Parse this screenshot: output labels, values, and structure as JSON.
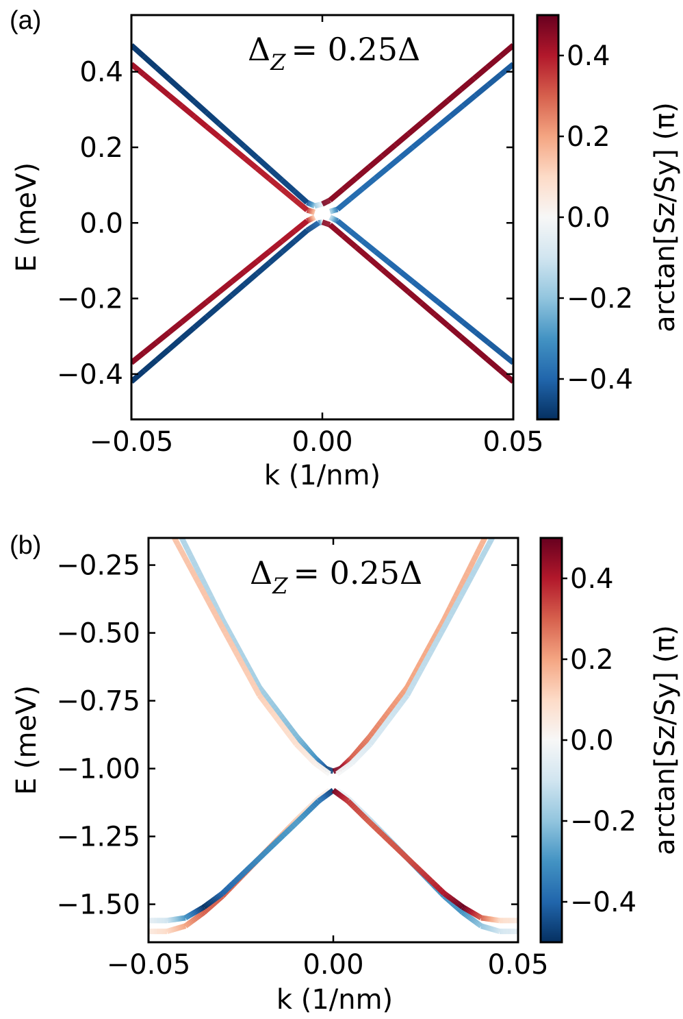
{
  "chart_data": [
    {
      "type": "line",
      "panel_label": "(a)",
      "annotation_text": "= 0.25",
      "annotation_math": {
        "base": "Δ",
        "subscript": "Z",
        "rhs": "= 0.25Δ"
      },
      "xlabel": "k (1/nm)",
      "ylabel": "E (meV)",
      "xlim": [
        -0.05,
        0.05
      ],
      "ylim": [
        -0.52,
        0.55
      ],
      "xticks": [
        {
          "v": -0.05,
          "label": "−0.05"
        },
        {
          "v": 0.0,
          "label": "0.00"
        },
        {
          "v": 0.05,
          "label": "0.05"
        }
      ],
      "yticks": [
        {
          "v": 0.4,
          "label": "0.4"
        },
        {
          "v": 0.2,
          "label": "0.2"
        },
        {
          "v": 0.0,
          "label": "0.0"
        },
        {
          "v": -0.2,
          "label": "−0.2"
        },
        {
          "v": -0.4,
          "label": "−0.4"
        }
      ],
      "colorbar": {
        "label": "arctan[S_z/S_y] (π)",
        "label_text": "arctan[Sz/Sy] (π)",
        "range": [
          -0.5,
          0.5
        ],
        "colormap": "RdBu_r",
        "ticks": [
          {
            "v": 0.4,
            "label": "0.4"
          },
          {
            "v": 0.2,
            "label": "0.2"
          },
          {
            "v": 0.0,
            "label": "0.0"
          },
          {
            "v": -0.2,
            "label": "−0.2"
          },
          {
            "v": -0.4,
            "label": "−0.4"
          }
        ]
      },
      "series": [
        {
          "name": "band-1",
          "x": [
            -0.05,
            -0.004,
            -0.002,
            0.0
          ],
          "y": [
            0.47,
            0.054,
            0.045,
            0.05
          ],
          "c": [
            -0.48,
            -0.45,
            -0.2,
            -0.05
          ]
        },
        {
          "name": "band-2",
          "x": [
            -0.05,
            -0.004,
            -0.002
          ],
          "y": [
            0.42,
            0.034,
            0.028
          ],
          "c": [
            0.42,
            0.38,
            0.15
          ]
        },
        {
          "name": "band-3",
          "x": [
            0.0,
            0.002,
            0.05
          ],
          "y": [
            0.05,
            0.06,
            0.47
          ],
          "c": [
            0.48,
            0.45,
            0.46
          ]
        },
        {
          "name": "band-4",
          "x": [
            0.002,
            0.004,
            0.05
          ],
          "y": [
            0.03,
            0.036,
            0.42
          ],
          "c": [
            -0.15,
            -0.38,
            -0.42
          ]
        },
        {
          "name": "band-5",
          "x": [
            -0.05,
            -0.004,
            -0.002
          ],
          "y": [
            -0.37,
            0.005,
            0.015
          ],
          "c": [
            0.45,
            0.4,
            0.12
          ]
        },
        {
          "name": "band-6",
          "x": [
            -0.05,
            -0.004,
            -0.001,
            0.0
          ],
          "y": [
            -0.42,
            -0.02,
            0.0,
            0.002
          ],
          "c": [
            -0.48,
            -0.45,
            -0.4,
            -0.1
          ]
        },
        {
          "name": "band-7",
          "x": [
            0.0,
            0.002,
            0.05
          ],
          "y": [
            0.002,
            -0.005,
            -0.42
          ],
          "c": [
            0.46,
            0.44,
            0.46
          ]
        },
        {
          "name": "band-8",
          "x": [
            0.002,
            0.004,
            0.05
          ],
          "y": [
            0.015,
            0.005,
            -0.37
          ],
          "c": [
            -0.12,
            -0.38,
            -0.42
          ]
        }
      ]
    },
    {
      "type": "line",
      "panel_label": "(b)",
      "annotation_text": "= 0.25",
      "annotation_math": {
        "base": "Δ",
        "subscript": "Z",
        "rhs": "= 0.25Δ"
      },
      "xlabel": "k (1/nm)",
      "ylabel": "E (meV)",
      "xlim": [
        -0.05,
        0.05
      ],
      "ylim": [
        -1.64,
        -0.15
      ],
      "xticks": [
        {
          "v": -0.05,
          "label": "−0.05"
        },
        {
          "v": 0.0,
          "label": "0.00"
        },
        {
          "v": 0.05,
          "label": "0.05"
        }
      ],
      "yticks": [
        {
          "v": -0.25,
          "label": "−0.25"
        },
        {
          "v": -0.5,
          "label": "−0.50"
        },
        {
          "v": -0.75,
          "label": "−0.75"
        },
        {
          "v": -1.0,
          "label": "−1.00"
        },
        {
          "v": -1.25,
          "label": "−1.25"
        },
        {
          "v": -1.5,
          "label": "−1.50"
        }
      ],
      "colorbar": {
        "label": "arctan[S_z/S_y] (π)",
        "label_text": "arctan[Sz/Sy] (π)",
        "range": [
          -0.5,
          0.5
        ],
        "colormap": "RdBu_r",
        "ticks": [
          {
            "v": 0.4,
            "label": "0.4"
          },
          {
            "v": 0.2,
            "label": "0.2"
          },
          {
            "v": 0.0,
            "label": "0.0"
          },
          {
            "v": -0.2,
            "label": "−0.2"
          },
          {
            "v": -0.4,
            "label": "−0.4"
          }
        ]
      },
      "series": [
        {
          "name": "upper-left-blue",
          "x": [
            -0.041,
            -0.03,
            -0.02,
            -0.01,
            -0.005,
            -0.002,
            0.0
          ],
          "y": [
            -0.15,
            -0.45,
            -0.7,
            -0.88,
            -0.96,
            -1.0,
            -1.01
          ],
          "c": [
            -0.15,
            -0.15,
            -0.17,
            -0.22,
            -0.3,
            -0.45,
            -0.48
          ]
        },
        {
          "name": "upper-left-orange",
          "x": [
            -0.043,
            -0.03,
            -0.02,
            -0.01,
            -0.005,
            -0.001
          ],
          "y": [
            -0.15,
            -0.48,
            -0.73,
            -0.91,
            -0.98,
            -1.02
          ],
          "c": [
            0.14,
            0.14,
            0.12,
            0.08,
            0.03,
            0.0
          ]
        },
        {
          "name": "upper-right-orange",
          "x": [
            0.0,
            0.002,
            0.005,
            0.01,
            0.02,
            0.03,
            0.041
          ],
          "y": [
            -1.01,
            -1.0,
            -0.96,
            -0.88,
            -0.7,
            -0.45,
            -0.15
          ],
          "c": [
            0.48,
            0.45,
            0.3,
            0.25,
            0.2,
            0.18,
            0.17
          ]
        },
        {
          "name": "upper-right-blue",
          "x": [
            0.001,
            0.005,
            0.01,
            0.02,
            0.03,
            0.043
          ],
          "y": [
            -1.02,
            -0.98,
            -0.91,
            -0.73,
            -0.48,
            -0.15
          ],
          "c": [
            0.0,
            -0.03,
            -0.08,
            -0.12,
            -0.14,
            -0.15
          ]
        },
        {
          "name": "lower-left-orange",
          "x": [
            -0.05,
            -0.045,
            -0.04,
            -0.035,
            -0.03,
            -0.02,
            -0.01,
            -0.004,
            -0.001
          ],
          "y": [
            -1.6,
            -1.6,
            -1.58,
            -1.53,
            -1.47,
            -1.33,
            -1.19,
            -1.11,
            -1.08
          ],
          "c": [
            0.05,
            0.1,
            0.2,
            0.3,
            0.3,
            0.25,
            0.12,
            0.05,
            0.02
          ]
        },
        {
          "name": "lower-left-blue",
          "x": [
            -0.05,
            -0.045,
            -0.04,
            -0.035,
            -0.03,
            -0.02,
            -0.01,
            -0.004,
            0.0
          ],
          "y": [
            -1.56,
            -1.56,
            -1.55,
            -1.51,
            -1.46,
            -1.33,
            -1.2,
            -1.12,
            -1.08
          ],
          "c": [
            -0.05,
            -0.1,
            -0.3,
            -0.5,
            -0.4,
            -0.32,
            -0.28,
            -0.35,
            -0.48
          ]
        },
        {
          "name": "lower-right-blue",
          "x": [
            0.001,
            0.004,
            0.01,
            0.02,
            0.03,
            0.035,
            0.04,
            0.045,
            0.05
          ],
          "y": [
            -1.08,
            -1.11,
            -1.19,
            -1.33,
            -1.47,
            -1.53,
            -1.58,
            -1.6,
            -1.6
          ],
          "c": [
            -0.02,
            -0.05,
            -0.12,
            -0.25,
            -0.3,
            -0.3,
            -0.2,
            -0.1,
            -0.05
          ]
        },
        {
          "name": "lower-right-orange",
          "x": [
            0.0,
            0.004,
            0.01,
            0.02,
            0.03,
            0.035,
            0.04,
            0.045,
            0.05
          ],
          "y": [
            -1.08,
            -1.12,
            -1.2,
            -1.33,
            -1.46,
            -1.51,
            -1.55,
            -1.56,
            -1.56
          ],
          "c": [
            0.48,
            0.35,
            0.3,
            0.32,
            0.4,
            0.5,
            0.3,
            0.1,
            0.05
          ]
        }
      ]
    }
  ]
}
